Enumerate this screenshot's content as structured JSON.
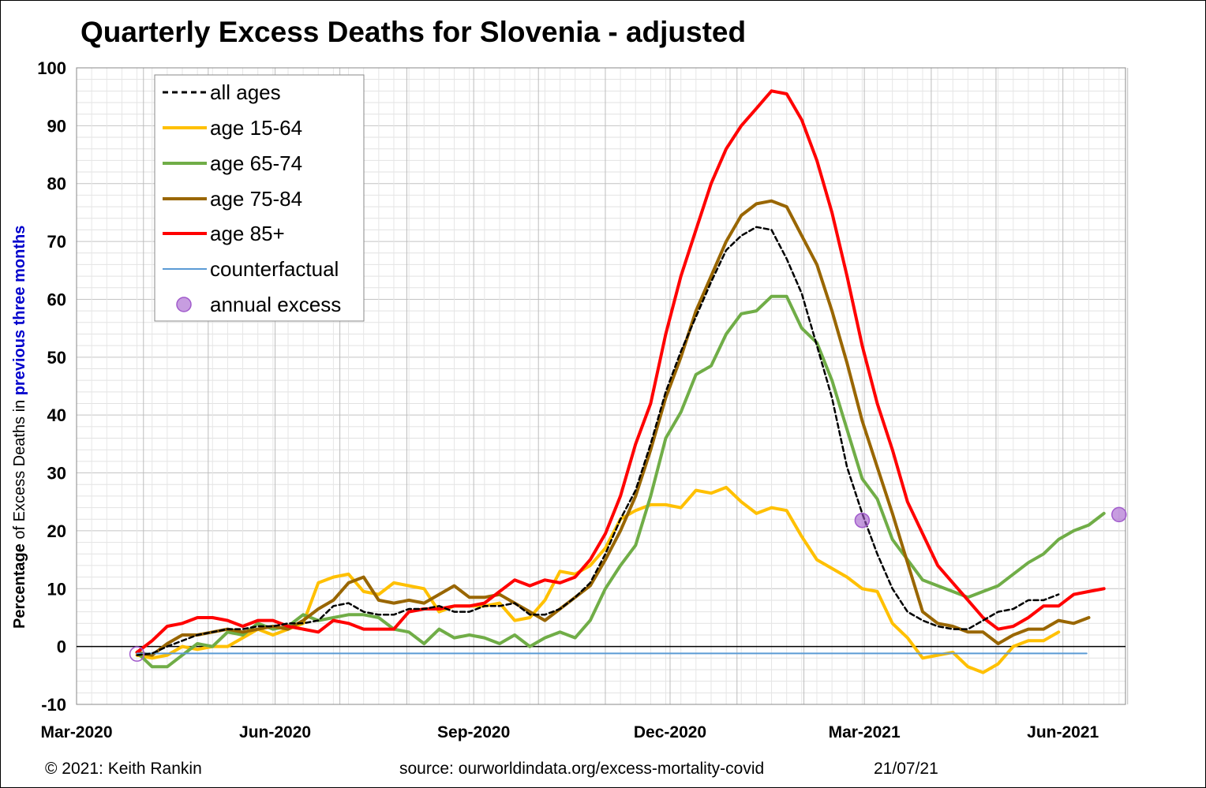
{
  "chart_data": {
    "type": "line",
    "title": "Quarterly Excess Deaths for Slovenia - adjusted",
    "ylabel": {
      "part1": "Percentage",
      "part2": " of Excess Deaths in ",
      "part3": "previous three months"
    },
    "ylim": [
      -10,
      100
    ],
    "yticks": [
      "-10",
      "0",
      "10",
      "20",
      "30",
      "40",
      "50",
      "60",
      "70",
      "80",
      "90",
      "100"
    ],
    "xlim": [
      "2020-03-01",
      "2021-06-30"
    ],
    "xticks": [
      "Mar-2020",
      "Jun-2020",
      "Sep-2020",
      "Dec-2020",
      "Mar-2021",
      "Jun-2021"
    ],
    "grid": true,
    "legend_position": "top-left",
    "x_start": "2020-03-29",
    "x_step_days": 7,
    "series": [
      {
        "name": "all ages",
        "color": "#000000",
        "style": "dashed",
        "values": [
          -1.5,
          -1.2,
          0,
          1,
          2,
          2.5,
          3,
          3,
          3.5,
          3.5,
          4,
          4,
          4.5,
          7,
          7.5,
          6,
          5.5,
          5.5,
          6.5,
          6.5,
          7,
          6,
          6,
          7,
          7,
          7.5,
          5.5,
          5.5,
          6.5,
          8.5,
          11,
          16,
          22,
          27,
          35,
          44,
          51,
          57,
          63,
          68.5,
          71,
          72.5,
          72,
          67,
          61,
          52,
          43,
          31,
          23,
          16,
          10,
          6,
          4.5,
          3.5,
          3,
          3,
          4.5,
          6,
          6.5,
          8,
          8,
          9
        ]
      },
      {
        "name": "age 15-64",
        "color": "#ffc000",
        "style": "solid",
        "values": [
          -1.5,
          -2,
          -1.5,
          0,
          -0.5,
          0,
          0,
          1.5,
          3,
          2,
          3,
          4,
          11,
          12,
          12.5,
          9.5,
          9,
          11,
          10.5,
          10,
          6,
          7,
          7,
          7,
          7.5,
          4.5,
          5,
          8,
          13,
          12.5,
          14,
          17,
          22,
          23.5,
          24.5,
          24.5,
          24,
          27,
          26.5,
          27.5,
          25,
          23,
          24,
          23.5,
          19,
          15,
          13.5,
          12,
          10,
          9.5,
          4,
          1.5,
          -2,
          -1.5,
          -1,
          -3.5,
          -4.5,
          -3,
          0,
          1,
          1,
          2.5
        ]
      },
      {
        "name": "age 65-74",
        "color": "#70ad47",
        "style": "solid",
        "values": [
          -1,
          -3.5,
          -3.5,
          -1.5,
          0.5,
          0,
          2.5,
          2,
          4,
          3,
          3.5,
          5.5,
          4.5,
          5,
          5.5,
          5.5,
          5,
          3,
          2.5,
          0.5,
          3,
          1.5,
          2,
          1.5,
          0.5,
          2,
          0,
          1.5,
          2.5,
          1.5,
          4.5,
          10,
          14,
          17.5,
          26,
          36,
          40.5,
          47,
          48.5,
          54,
          57.5,
          58,
          60.5,
          60.5,
          55,
          52.5,
          46,
          37.5,
          29,
          25.5,
          18.5,
          15,
          11.5,
          10.5,
          9.5,
          8.5,
          9.5,
          10.5,
          12.5,
          14.5,
          16,
          18.5,
          20,
          21,
          23
        ]
      },
      {
        "name": "age 75-84",
        "color": "#996600",
        "style": "solid",
        "values": [
          -1,
          -1.5,
          0.5,
          2,
          2,
          2.5,
          3,
          2.5,
          3,
          3.5,
          3,
          4.5,
          6.5,
          8,
          11,
          12,
          8,
          7.5,
          8,
          7.5,
          9,
          10.5,
          8.5,
          8.5,
          9,
          7.5,
          6,
          4.5,
          6.5,
          8.5,
          10.5,
          15,
          20,
          26,
          34,
          43,
          50,
          58,
          64,
          70,
          74.5,
          76.5,
          77,
          76,
          71,
          66,
          58,
          49,
          39,
          31,
          23,
          14.5,
          6,
          4,
          3.5,
          2.5,
          2.5,
          0.5,
          2,
          3,
          3,
          4.5,
          4,
          5
        ]
      },
      {
        "name": "age 85+",
        "color": "#ff0000",
        "style": "solid",
        "values": [
          -1,
          1,
          3.5,
          4,
          5,
          5,
          4.5,
          3.5,
          4.5,
          4.5,
          3.5,
          3,
          2.5,
          4.5,
          4,
          3,
          3,
          3,
          6,
          6.5,
          6.5,
          7,
          7,
          7.5,
          9.5,
          11.5,
          10.5,
          11.5,
          11,
          12,
          15,
          19.5,
          26,
          35,
          42,
          54,
          64,
          72,
          80,
          86,
          90,
          93,
          96,
          95.5,
          91,
          84,
          75,
          64,
          52,
          42,
          34,
          25,
          19.5,
          14,
          11,
          8,
          5,
          3,
          3.5,
          5,
          7,
          7,
          9,
          9.5,
          10
        ]
      },
      {
        "name": "counterfactual",
        "color": "#5b9bd5",
        "style": "thin",
        "values": [
          -1.2,
          -1.2
        ]
      }
    ],
    "annual_excess": {
      "name": "annual excess",
      "color": "#a15bcc",
      "points": [
        {
          "x": "2020-03-29",
          "y": -1.3
        },
        {
          "x": "2021-02-28",
          "y": 21.8
        },
        {
          "x": "2021-06-27",
          "y": 22.8
        }
      ]
    }
  },
  "footer": {
    "copyright": "© 2021: Keith Rankin",
    "source": "source: ourworldindata.org/excess-mortality-covid",
    "date": "21/07/21"
  }
}
